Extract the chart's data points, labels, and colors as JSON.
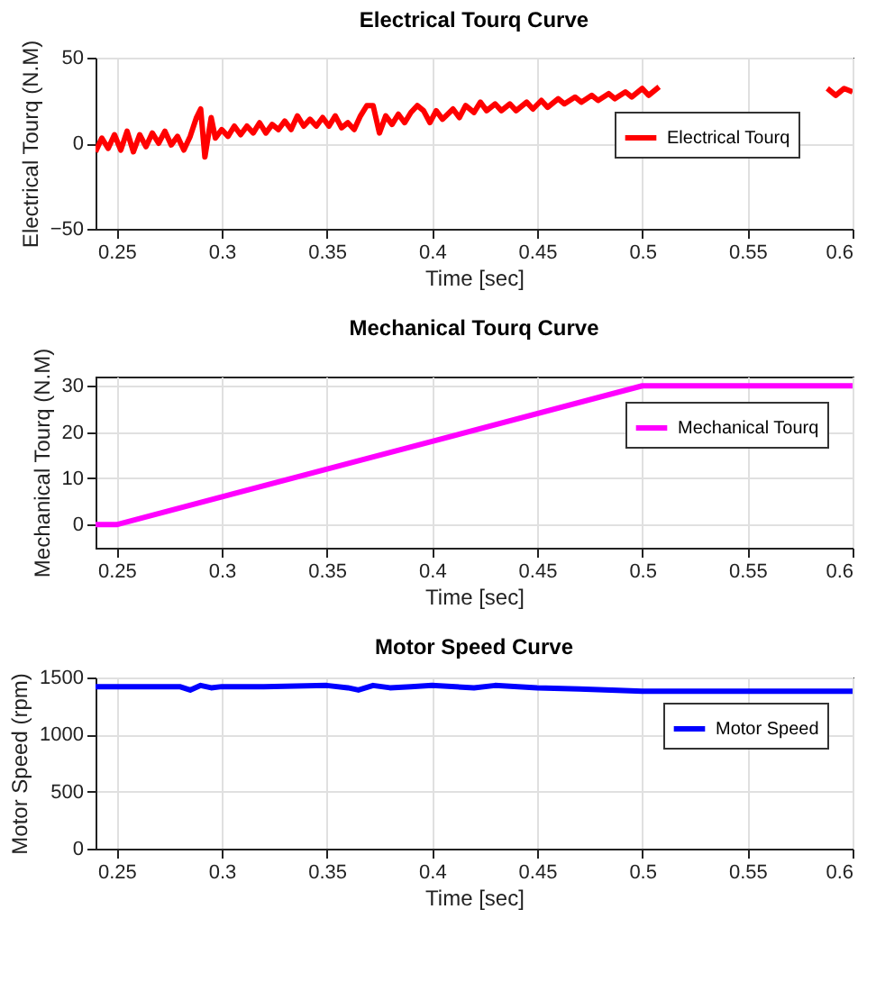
{
  "chart_data": [
    {
      "type": "line",
      "title": "Electrical Tourq Curve",
      "xlabel": "Time [sec]",
      "ylabel": "Electrical Tourq (N.M)",
      "xlim": [
        0.24,
        0.6
      ],
      "xticks": [
        0.25,
        0.3,
        0.35,
        0.4,
        0.45,
        0.5,
        0.55,
        0.6
      ],
      "ylim": [
        -50,
        50
      ],
      "yticks": [
        -50,
        0,
        50
      ],
      "grid": true,
      "legend": "top right",
      "line_style": "solid",
      "x": [
        0.24,
        0.243,
        0.246,
        0.249,
        0.252,
        0.255,
        0.258,
        0.261,
        0.264,
        0.267,
        0.27,
        0.273,
        0.276,
        0.279,
        0.282,
        0.285,
        0.288,
        0.29,
        0.292,
        0.295,
        0.297,
        0.3,
        0.303,
        0.306,
        0.309,
        0.312,
        0.315,
        0.318,
        0.321,
        0.324,
        0.327,
        0.33,
        0.333,
        0.336,
        0.339,
        0.342,
        0.345,
        0.348,
        0.351,
        0.354,
        0.357,
        0.36,
        0.363,
        0.366,
        0.369,
        0.372,
        0.375,
        0.378,
        0.381,
        0.384,
        0.387,
        0.39,
        0.393,
        0.396,
        0.399,
        0.402,
        0.405,
        0.41,
        0.413,
        0.416,
        0.42,
        0.423,
        0.426,
        0.43,
        0.433,
        0.437,
        0.44,
        0.445,
        0.448,
        0.452,
        0.455,
        0.46,
        0.463,
        0.468,
        0.471,
        0.476,
        0.479,
        0.484,
        0.487,
        0.492,
        0.495,
        0.5,
        0.503,
        0.508,
        0.52,
        0.58,
        0.588,
        0.592,
        0.596,
        0.6
      ],
      "series": [
        {
          "name": "Electrical Tourq",
          "color": "#ff0000",
          "values": [
            -5,
            3,
            -3,
            5,
            -4,
            7,
            -5,
            5,
            -2,
            6,
            0,
            7,
            -1,
            4,
            -4,
            4,
            15,
            20,
            -8,
            15,
            3,
            8,
            4,
            10,
            5,
            10,
            6,
            12,
            6,
            11,
            8,
            13,
            8,
            16,
            10,
            14,
            10,
            15,
            10,
            16,
            9,
            12,
            8,
            16,
            22,
            22,
            6,
            16,
            11,
            17,
            12,
            18,
            22,
            19,
            12,
            19,
            14,
            20,
            15,
            22,
            18,
            24,
            19,
            23,
            19,
            23,
            19,
            24,
            20,
            25,
            21,
            26,
            23,
            27,
            24,
            28,
            25,
            29,
            26,
            30,
            27,
            32,
            28,
            33,
            null,
            null,
            32,
            28,
            32,
            30
          ]
        }
      ]
    },
    {
      "type": "line",
      "title": "Mechanical Tourq Curve",
      "xlabel": "Time [sec]",
      "ylabel": "Mechanical Tourq (N.M)",
      "xlim": [
        0.24,
        0.6
      ],
      "xticks": [
        0.25,
        0.3,
        0.35,
        0.4,
        0.45,
        0.5,
        0.55,
        0.6
      ],
      "ylim": [
        -5,
        32
      ],
      "yticks": [
        0,
        10,
        20,
        30
      ],
      "grid": true,
      "legend": "top right",
      "line_style": "solid",
      "x": [
        0.24,
        0.25,
        0.5,
        0.6
      ],
      "series": [
        {
          "name": "Mechanical Tourq",
          "color": "#ff00ff",
          "values": [
            0,
            0,
            30,
            30
          ]
        }
      ]
    },
    {
      "type": "line",
      "title": "Motor Speed Curve",
      "xlabel": "Time [sec]",
      "ylabel": "Motor Speed (rpm)",
      "xlim": [
        0.24,
        0.6
      ],
      "xticks": [
        0.25,
        0.3,
        0.35,
        0.4,
        0.45,
        0.5,
        0.55,
        0.6
      ],
      "ylim": [
        0,
        1500
      ],
      "yticks": [
        0,
        500,
        1000,
        1500
      ],
      "grid": true,
      "legend": "top right",
      "line_style": "solid",
      "x": [
        0.24,
        0.26,
        0.28,
        0.285,
        0.29,
        0.295,
        0.3,
        0.32,
        0.35,
        0.36,
        0.365,
        0.372,
        0.38,
        0.39,
        0.4,
        0.42,
        0.43,
        0.45,
        0.47,
        0.5,
        0.55,
        0.6
      ],
      "series": [
        {
          "name": "Motor Speed",
          "color": "#0000ff",
          "values": [
            1420,
            1420,
            1420,
            1390,
            1430,
            1410,
            1420,
            1420,
            1430,
            1410,
            1390,
            1430,
            1410,
            1420,
            1430,
            1410,
            1430,
            1410,
            1400,
            1380,
            1380,
            1380
          ]
        }
      ]
    }
  ]
}
